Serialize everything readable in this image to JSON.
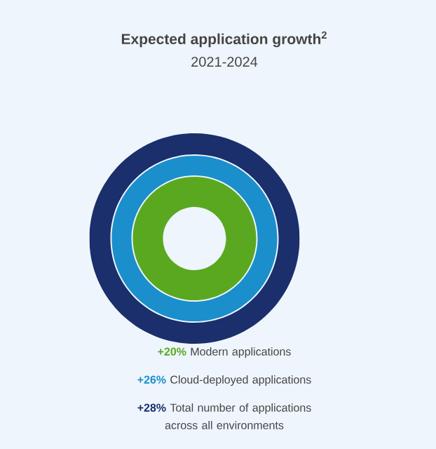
{
  "chart_data": {
    "type": "other",
    "title": "Expected application growth$^{2}$",
    "subtitle": "2021-2024",
    "categories": [
      "Modern applications",
      "Cloud-deployed applications",
      "Total number of applications across all environments"
    ],
    "values": [
      20,
      26,
      28
    ],
    "value_labels": [
      "+20%",
      "+26%",
      "+28%"
    ],
    "colors": [
      "#5aa820",
      "#1a8fcc",
      "#1a2f6b"
    ]
  }
}
